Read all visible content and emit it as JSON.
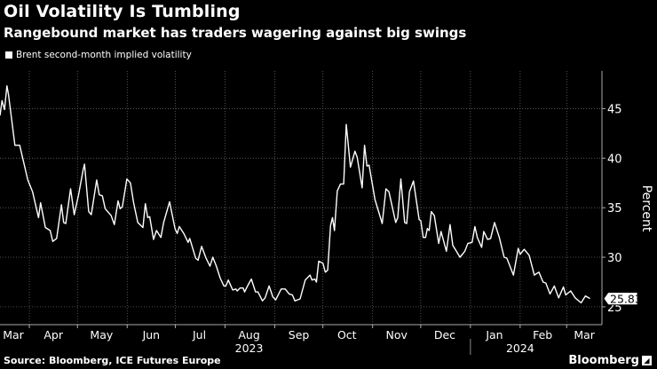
{
  "header": {
    "title": "Oil Volatility Is Tumbling",
    "subtitle": "Rangebound market has traders wagering against big swings"
  },
  "footer": {
    "source": "Source: Bloomberg, ICE Futures Europe",
    "logo": "Bloomberg"
  },
  "colors": {
    "background": "#000000",
    "line": "#ffffff",
    "grid": "#555555"
  },
  "chart_data": {
    "type": "line",
    "title": "Oil Volatility Is Tumbling",
    "ylabel": "Percent",
    "xlabel": "",
    "x_unit": "days since 2023-03-01",
    "xlim": [
      12.7,
      388
    ],
    "ylim": [
      23.2,
      48.8
    ],
    "y_ticks": [
      25,
      30,
      35,
      40,
      45
    ],
    "y_tick_labels": [
      "25",
      "30",
      "35",
      "40",
      "45"
    ],
    "grid": true,
    "legend": {
      "position": "top-left",
      "entries": [
        "Brent second-month implied volatility"
      ]
    },
    "month_boundaries": [
      31,
      61,
      92,
      122,
      153,
      184,
      214,
      245,
      275,
      306,
      337,
      366
    ],
    "month_labels": [
      {
        "label": "Mar",
        "center": 21
      },
      {
        "label": "Apr",
        "center": 46
      },
      {
        "label": "May",
        "center": 76
      },
      {
        "label": "Jun",
        "center": 107
      },
      {
        "label": "Jul",
        "center": 137
      },
      {
        "label": "Aug",
        "center": 168
      },
      {
        "label": "Sep",
        "center": 199
      },
      {
        "label": "Oct",
        "center": 229
      },
      {
        "label": "Nov",
        "center": 260
      },
      {
        "label": "Dec",
        "center": 290
      },
      {
        "label": "Jan",
        "center": 321
      },
      {
        "label": "Feb",
        "center": 351
      },
      {
        "label": "Mar",
        "center": 377
      }
    ],
    "year_labels": [
      {
        "label": "2023",
        "center": 168
      },
      {
        "label": "2024",
        "center": 337
      }
    ],
    "year_divider": 306,
    "last_value_label": "25.83",
    "series": [
      {
        "name": "Brent second-month implied volatility",
        "points": [
          [
            12.7,
            44.3
          ],
          [
            14,
            45.8
          ],
          [
            15.5,
            44.9
          ],
          [
            17,
            47.3
          ],
          [
            18,
            46.4
          ],
          [
            22,
            41.3
          ],
          [
            25,
            41.3
          ],
          [
            30,
            37.8
          ],
          [
            33,
            36.6
          ],
          [
            36.7,
            34.0
          ],
          [
            38,
            35.5
          ],
          [
            41,
            33.0
          ],
          [
            44,
            32.7
          ],
          [
            45.6,
            31.6
          ],
          [
            48,
            31.9
          ],
          [
            51,
            35.3
          ],
          [
            52.4,
            33.5
          ],
          [
            53.7,
            33.4
          ],
          [
            56.7,
            36.9
          ],
          [
            59,
            34.3
          ],
          [
            61.7,
            36.3
          ],
          [
            64.5,
            38.8
          ],
          [
            65.4,
            39.4
          ],
          [
            68,
            34.6
          ],
          [
            69.6,
            34.3
          ],
          [
            73,
            37.8
          ],
          [
            74.6,
            36.3
          ],
          [
            76.5,
            36.2
          ],
          [
            78.3,
            34.9
          ],
          [
            82,
            34.2
          ],
          [
            84,
            33.3
          ],
          [
            86.3,
            35.7
          ],
          [
            87.6,
            34.9
          ],
          [
            89,
            35.1
          ],
          [
            91.8,
            37.9
          ],
          [
            94,
            37.5
          ],
          [
            96,
            35.5
          ],
          [
            98.6,
            33.5
          ],
          [
            101.8,
            33.0
          ],
          [
            103.3,
            35.4
          ],
          [
            104.8,
            34.0
          ],
          [
            106,
            34.1
          ],
          [
            108.4,
            31.8
          ],
          [
            110.3,
            32.7
          ],
          [
            113,
            32.0
          ],
          [
            114.7,
            33.5
          ],
          [
            118.4,
            35.6
          ],
          [
            121.8,
            32.9
          ],
          [
            123.2,
            32.4
          ],
          [
            124.5,
            33.1
          ],
          [
            127.3,
            32.4
          ],
          [
            130,
            31.5
          ],
          [
            131,
            31.9
          ],
          [
            134.7,
            29.9
          ],
          [
            136.2,
            29.7
          ],
          [
            138.4,
            31.1
          ],
          [
            141.2,
            29.9
          ],
          [
            143.6,
            29.1
          ],
          [
            145.4,
            30.0
          ],
          [
            147.6,
            29.1
          ],
          [
            150,
            27.9
          ],
          [
            152.3,
            27.1
          ],
          [
            153.5,
            27.1
          ],
          [
            155,
            27.7
          ],
          [
            157.8,
            26.7
          ],
          [
            159.7,
            26.8
          ],
          [
            160.6,
            26.6
          ],
          [
            162.4,
            26.9
          ],
          [
            164.3,
            26.9
          ],
          [
            165.2,
            26.5
          ],
          [
            167,
            27.1
          ],
          [
            169.4,
            27.8
          ],
          [
            172,
            26.5
          ],
          [
            173.5,
            26.5
          ],
          [
            176.3,
            25.6
          ],
          [
            178,
            25.9
          ],
          [
            180.5,
            27.1
          ],
          [
            182.8,
            26.0
          ],
          [
            184.6,
            25.7
          ],
          [
            188,
            26.8
          ],
          [
            190.5,
            26.8
          ],
          [
            193,
            26.3
          ],
          [
            195,
            26.2
          ],
          [
            196.6,
            25.6
          ],
          [
            199.8,
            25.8
          ],
          [
            203,
            27.7
          ],
          [
            206,
            28.2
          ],
          [
            207.2,
            27.7
          ],
          [
            209,
            27.8
          ],
          [
            210,
            27.5
          ],
          [
            211.4,
            29.6
          ],
          [
            214,
            29.4
          ],
          [
            215.5,
            28.5
          ],
          [
            217,
            28.7
          ],
          [
            218.8,
            33.2
          ],
          [
            220,
            34.0
          ],
          [
            221.2,
            32.7
          ],
          [
            223,
            36.7
          ],
          [
            225,
            37.4
          ],
          [
            227,
            37.4
          ],
          [
            228.6,
            43.4
          ],
          [
            231.2,
            39.1
          ],
          [
            234,
            40.7
          ],
          [
            235.4,
            40.1
          ],
          [
            238.5,
            37.0
          ],
          [
            240,
            41.3
          ],
          [
            241.5,
            39.2
          ],
          [
            242.8,
            39.3
          ],
          [
            246.5,
            35.8
          ],
          [
            251,
            33.4
          ],
          [
            253.3,
            36.9
          ],
          [
            255.2,
            36.6
          ],
          [
            259.4,
            33.5
          ],
          [
            260.7,
            34.0
          ],
          [
            262.6,
            37.9
          ],
          [
            265,
            33.5
          ],
          [
            266.3,
            33.4
          ],
          [
            268,
            36.6
          ],
          [
            270.5,
            37.7
          ],
          [
            274,
            33.8
          ],
          [
            275,
            33.7
          ],
          [
            276.6,
            32.0
          ],
          [
            278,
            32.0
          ],
          [
            279.2,
            32.9
          ],
          [
            280.3,
            32.7
          ],
          [
            281.6,
            34.6
          ],
          [
            283.5,
            34.2
          ],
          [
            286.2,
            31.4
          ],
          [
            287.7,
            32.6
          ],
          [
            291,
            30.6
          ],
          [
            293.3,
            33.3
          ],
          [
            295,
            31.2
          ],
          [
            297.3,
            30.6
          ],
          [
            299.5,
            30.0
          ],
          [
            302.5,
            30.6
          ],
          [
            304.4,
            31.4
          ],
          [
            307,
            31.5
          ],
          [
            308.8,
            33.1
          ],
          [
            310.3,
            32.0
          ],
          [
            313,
            31.0
          ],
          [
            314.3,
            32.6
          ],
          [
            316.7,
            31.8
          ],
          [
            318.6,
            31.9
          ],
          [
            321,
            33.5
          ],
          [
            324,
            32.0
          ],
          [
            327,
            30.0
          ],
          [
            328.7,
            29.9
          ],
          [
            332.8,
            28.2
          ],
          [
            335.8,
            30.9
          ],
          [
            337,
            30.3
          ],
          [
            339.5,
            30.8
          ],
          [
            342.6,
            30.2
          ],
          [
            345.8,
            28.2
          ],
          [
            348.7,
            28.5
          ],
          [
            351.3,
            27.5
          ],
          [
            353,
            27.4
          ],
          [
            355.6,
            26.3
          ],
          [
            358.3,
            27.1
          ],
          [
            361,
            25.9
          ],
          [
            364,
            27.0
          ],
          [
            365.4,
            26.2
          ],
          [
            368.5,
            26.6
          ],
          [
            371.3,
            25.9
          ],
          [
            375,
            25.4
          ],
          [
            377.7,
            26.1
          ],
          [
            380.5,
            25.83
          ]
        ]
      }
    ]
  }
}
